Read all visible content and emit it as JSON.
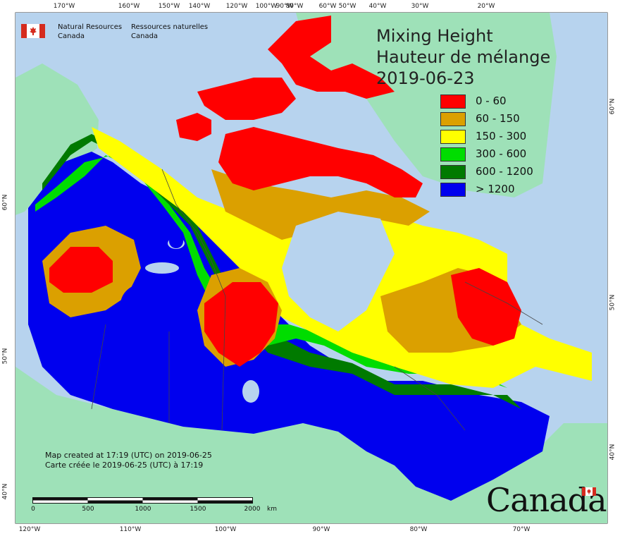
{
  "agency": {
    "name_en_line1": "Natural Resources",
    "name_en_line2": "Canada",
    "name_fr_line1": "Ressources naturelles",
    "name_fr_line2": "Canada"
  },
  "title": {
    "line1": "Mixing Height",
    "line2": "Hauteur de mélange",
    "date": "2019-06-23"
  },
  "legend": [
    {
      "label": "0 - 60",
      "color": "#ff0000"
    },
    {
      "label": "60 - 150",
      "color": "#dba000"
    },
    {
      "label": "150 - 300",
      "color": "#ffff00"
    },
    {
      "label": "300 - 600",
      "color": "#00dd00"
    },
    {
      "label": "600 - 1200",
      "color": "#007a00"
    },
    {
      "label": "> 1200",
      "color": "#0000ee"
    }
  ],
  "colors": {
    "ocean": "#b7d3ee",
    "foreign_land": "#9ee1b8",
    "border": "#444444"
  },
  "axes": {
    "top_longitudes": [
      "170°W",
      "160°W",
      "150°W",
      "140°W",
      "120°W",
      "100°W",
      "90°W",
      "80°W",
      "60°W",
      "50°W",
      "40°W",
      "30°W",
      "20°W"
    ],
    "bottom_longitudes": [
      "120°W",
      "110°W",
      "100°W",
      "90°W",
      "80°W",
      "70°W"
    ],
    "left_latitudes": [
      "60°N",
      "50°N",
      "40°N"
    ],
    "right_latitudes": [
      "60°N",
      "50°N",
      "40°N"
    ]
  },
  "created": {
    "en": "Map created at 17:19 (UTC) on 2019-06-25",
    "fr": "Carte créée le 2019-06-25 (UTC) à 17:19"
  },
  "scalebar": {
    "labels": [
      "0",
      "500",
      "1000",
      "1500",
      "2000"
    ],
    "unit": "km"
  },
  "wordmark": "Canada"
}
